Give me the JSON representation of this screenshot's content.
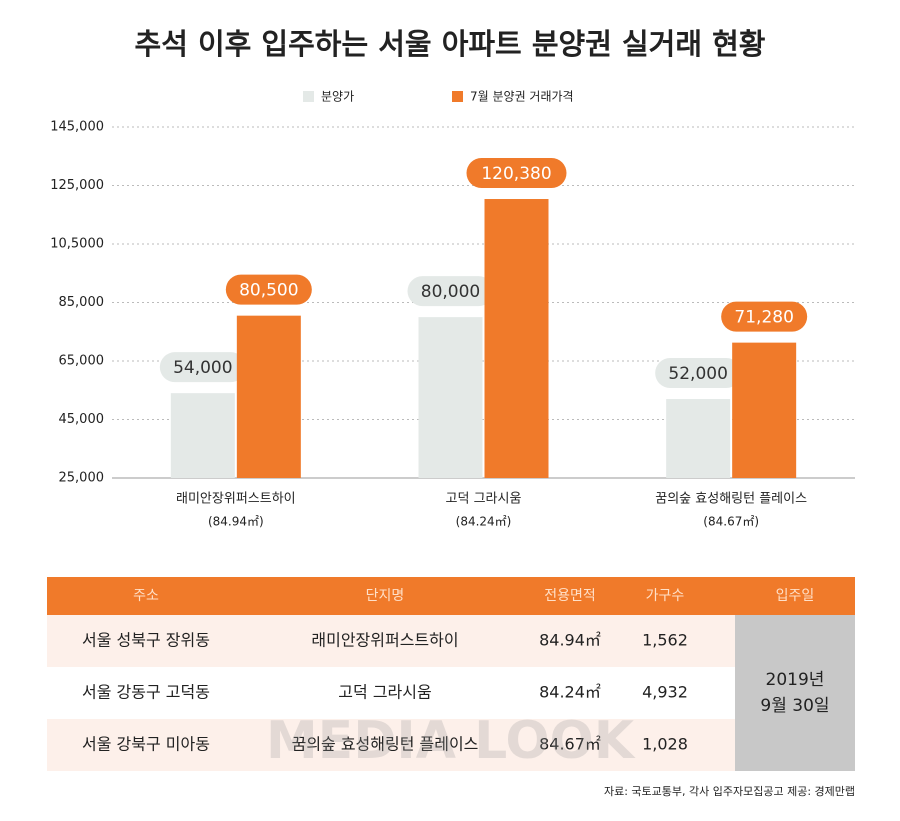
{
  "chart_data": {
    "type": "bar",
    "title": "추석 이후 입주하는 서울 아파트 분양권 실거래 현황",
    "categories": [
      "래미안장위퍼스트하이",
      "고덕 그라시움",
      "꿈의숲 효성해링턴 플레이스"
    ],
    "category_sublabels": [
      "(84.94㎡)",
      "(84.24㎡)",
      "(84.67㎡)"
    ],
    "series": [
      {
        "name": "분양가",
        "color": "#e4e9e7",
        "values": [
          54000,
          80000,
          52000
        ],
        "value_labels": [
          "54,000",
          "80,000",
          "52,000"
        ]
      },
      {
        "name": "7월 분양권 거래가격",
        "color": "#f07a2a",
        "values": [
          80500,
          120380,
          71280
        ],
        "value_labels": [
          "80,500",
          "120,380",
          "71,280"
        ]
      }
    ],
    "ylim": [
      25000,
      145000
    ],
    "yticks": [
      {
        "value": 25000,
        "label": "25,000"
      },
      {
        "value": 45000,
        "label": "45,000"
      },
      {
        "value": 65000,
        "label": "65,000"
      },
      {
        "value": 85000,
        "label": "85,000"
      },
      {
        "value": 105000,
        "label": "10,5000"
      },
      {
        "value": 125000,
        "label": "125,000"
      },
      {
        "value": 145000,
        "label": "145,000"
      }
    ],
    "grid": true
  },
  "table": {
    "header": [
      "주소",
      "단지명",
      "전용면적",
      "가구수",
      "입주일"
    ],
    "rows": [
      [
        "서울 성북구 장위동",
        "래미안장위퍼스트하이",
        "84.94㎡",
        "1,562"
      ],
      [
        "서울 강동구 고덕동",
        "고덕 그라시움",
        "84.24㎡",
        "4,932"
      ],
      [
        "서울 강북구 미아동",
        "꿈의숲 효성해링턴 플레이스",
        "84.67㎡",
        "1,028"
      ]
    ],
    "move_in": [
      "2019년",
      "9월 30일"
    ]
  },
  "source": "자료: 국토교통부, 각사 입주자모집공고 제공: 경제만랩",
  "watermark": "MEDIA LOOK"
}
